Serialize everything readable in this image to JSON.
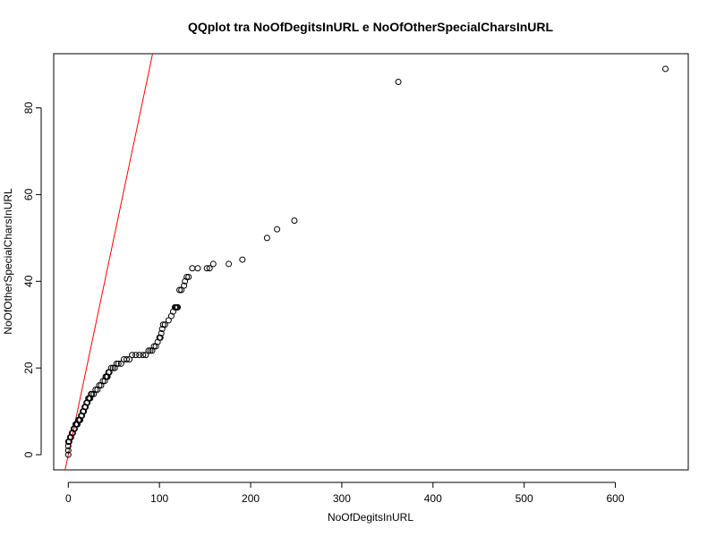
{
  "chart_data": {
    "type": "scatter",
    "title": "QQplot tra NoOfDegitsInURL e NoOfOtherSpecialCharsInURL",
    "xlabel": "NoOfDegitsInURL",
    "ylabel": "NoOfOtherSpecialCharsInURL",
    "xlim": [
      -16,
      680
    ],
    "ylim": [
      -3.5,
      92.5
    ],
    "xticks": [
      0,
      100,
      200,
      300,
      400,
      500,
      600
    ],
    "yticks": [
      0,
      20,
      40,
      60,
      80
    ],
    "grid": false,
    "legend": "none",
    "colors": {
      "points": "#000000",
      "reference_line": "#ff0000",
      "frame": "#000000"
    },
    "series": [
      {
        "x": [
          0,
          0,
          0,
          0,
          1,
          2,
          3,
          4,
          5,
          6,
          7,
          8,
          9,
          10,
          11,
          12,
          13,
          14,
          15,
          16,
          17,
          18,
          19,
          20,
          21,
          22,
          23,
          24,
          25,
          26,
          28,
          30,
          32,
          34,
          36,
          38,
          40,
          41,
          42,
          43,
          44,
          45,
          47,
          49,
          51,
          53,
          55,
          58,
          61,
          64,
          67,
          70,
          74,
          78,
          82,
          85,
          88,
          90,
          92,
          94,
          96,
          98,
          100,
          101,
          102,
          103,
          104,
          106,
          110,
          113,
          115,
          117,
          118,
          119,
          120,
          122,
          124,
          127,
          128,
          130,
          132,
          136,
          142,
          152,
          155,
          159,
          176,
          191,
          218,
          229,
          248,
          362,
          655
        ],
        "y": [
          0,
          1,
          2,
          3,
          3,
          4,
          4,
          5,
          5,
          6,
          6,
          7,
          7,
          7,
          8,
          8,
          8,
          9,
          9,
          10,
          10,
          11,
          11,
          12,
          12,
          13,
          13,
          13,
          14,
          14,
          14,
          15,
          15,
          16,
          16,
          17,
          17,
          18,
          18,
          18,
          19,
          19,
          20,
          20,
          20,
          21,
          21,
          21,
          22,
          22,
          22,
          23,
          23,
          23,
          23,
          23,
          24,
          24,
          24,
          25,
          25,
          26,
          27,
          27,
          28,
          29,
          30,
          30,
          31,
          32,
          33,
          34,
          34,
          34,
          34,
          38,
          38,
          39,
          40,
          41,
          41,
          43,
          43,
          43,
          43,
          44,
          44,
          45,
          50,
          52,
          54,
          86,
          89
        ],
        "marker": "open-circle"
      }
    ],
    "reference_line": {
      "slope": 1,
      "intercept": 0
    }
  }
}
